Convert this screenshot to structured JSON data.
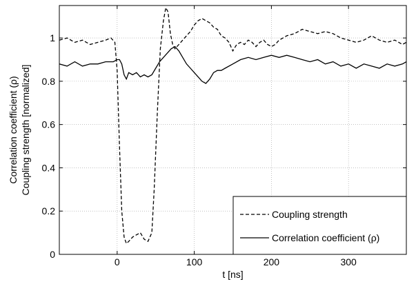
{
  "chart_data": {
    "type": "line",
    "title": "",
    "xlabel": "t [ns]",
    "ylabel_lines": [
      "Correlation coefficient (ρ)",
      "Coupling strength [normalized]"
    ],
    "xlim": [
      -75,
      375
    ],
    "ylim": [
      0,
      1.15
    ],
    "x_ticks": [
      0,
      100,
      200,
      300
    ],
    "y_ticks": [
      0,
      0.2,
      0.4,
      0.6,
      0.8,
      1
    ],
    "x_tick_labels": [
      "0",
      "100",
      "200",
      "300"
    ],
    "y_tick_labels": [
      "0",
      "0.2",
      "0.4",
      "0.6",
      "0.8",
      "1"
    ],
    "grid": true,
    "legend_position": "bottom-right",
    "series": [
      {
        "name": "Coupling strength",
        "line_style": "dashed",
        "color": "#000000",
        "x": [
          -75,
          -65,
          -55,
          -45,
          -35,
          -25,
          -15,
          -8,
          -3,
          0,
          3,
          6,
          9,
          12,
          15,
          20,
          25,
          30,
          35,
          40,
          45,
          48,
          52,
          56,
          60,
          63,
          66,
          69,
          72,
          75,
          80,
          85,
          90,
          95,
          100,
          105,
          110,
          115,
          120,
          125,
          130,
          135,
          140,
          145,
          150,
          155,
          160,
          165,
          170,
          175,
          180,
          185,
          190,
          195,
          200,
          205,
          210,
          215,
          220,
          230,
          240,
          250,
          260,
          270,
          280,
          290,
          300,
          310,
          320,
          330,
          340,
          350,
          360,
          370,
          375
        ],
        "y": [
          0.99,
          1.0,
          0.98,
          0.99,
          0.97,
          0.98,
          0.99,
          1.0,
          0.98,
          0.85,
          0.5,
          0.2,
          0.08,
          0.05,
          0.06,
          0.08,
          0.09,
          0.1,
          0.07,
          0.06,
          0.1,
          0.3,
          0.65,
          0.95,
          1.08,
          1.14,
          1.12,
          1.02,
          0.97,
          0.95,
          0.97,
          0.99,
          1.01,
          1.03,
          1.06,
          1.08,
          1.09,
          1.08,
          1.07,
          1.05,
          1.04,
          1.01,
          1.0,
          0.98,
          0.94,
          0.97,
          0.98,
          0.97,
          0.99,
          0.98,
          0.96,
          0.98,
          0.99,
          0.97,
          0.96,
          0.97,
          0.99,
          1.0,
          1.01,
          1.02,
          1.04,
          1.03,
          1.02,
          1.03,
          1.02,
          1.0,
          0.99,
          0.98,
          0.99,
          1.01,
          0.99,
          0.98,
          0.99,
          0.97,
          0.98
        ]
      },
      {
        "name": "Correlation coefficient (ρ)",
        "line_style": "solid",
        "color": "#000000",
        "x": [
          -75,
          -65,
          -55,
          -45,
          -35,
          -25,
          -15,
          -5,
          0,
          3,
          6,
          9,
          12,
          15,
          20,
          25,
          30,
          35,
          40,
          45,
          50,
          55,
          60,
          65,
          70,
          75,
          80,
          85,
          90,
          95,
          100,
          105,
          110,
          115,
          120,
          125,
          130,
          135,
          140,
          150,
          160,
          170,
          180,
          190,
          200,
          210,
          220,
          230,
          240,
          250,
          260,
          270,
          280,
          290,
          300,
          310,
          320,
          330,
          340,
          350,
          360,
          370,
          375
        ],
        "y": [
          0.88,
          0.87,
          0.89,
          0.87,
          0.88,
          0.88,
          0.89,
          0.89,
          0.9,
          0.9,
          0.88,
          0.83,
          0.81,
          0.84,
          0.83,
          0.84,
          0.82,
          0.83,
          0.82,
          0.83,
          0.86,
          0.89,
          0.91,
          0.93,
          0.95,
          0.96,
          0.94,
          0.91,
          0.88,
          0.86,
          0.84,
          0.82,
          0.8,
          0.79,
          0.81,
          0.84,
          0.85,
          0.85,
          0.86,
          0.88,
          0.9,
          0.91,
          0.9,
          0.91,
          0.92,
          0.91,
          0.92,
          0.91,
          0.9,
          0.89,
          0.9,
          0.88,
          0.89,
          0.87,
          0.88,
          0.86,
          0.88,
          0.87,
          0.86,
          0.88,
          0.87,
          0.88,
          0.89
        ]
      }
    ]
  }
}
